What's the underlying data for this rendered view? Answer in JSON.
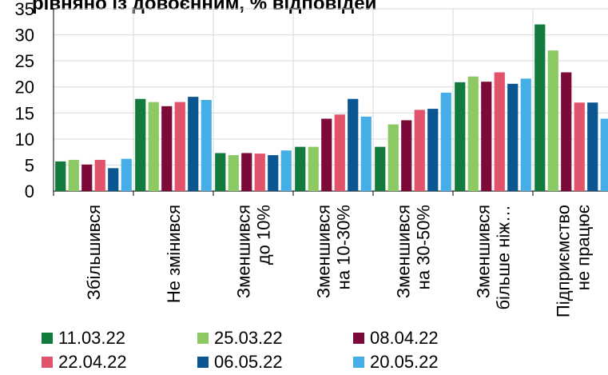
{
  "chart_data": {
    "type": "bar",
    "title": "рівняно із довоєнним, % відповідей",
    "ylim": [
      0,
      35
    ],
    "yticks": [
      0,
      5,
      10,
      15,
      20,
      25,
      30,
      35
    ],
    "grid": true,
    "legend_position": "bottom",
    "categories": [
      [
        "Збільшився"
      ],
      [
        "Не змінився"
      ],
      [
        "Зменшився",
        "до 10%"
      ],
      [
        "Зменшився",
        "на 10-30%"
      ],
      [
        "Зменшився",
        "на 30-50%"
      ],
      [
        "Зменшився",
        "більше ніж…"
      ],
      [
        "Підприємство",
        "не працює"
      ]
    ],
    "series": [
      {
        "name": "11.03.22",
        "color": "#127a3c",
        "values": [
          5.7,
          17.7,
          7.3,
          8.5,
          8.5,
          20.9,
          32.0
        ]
      },
      {
        "name": "25.03.22",
        "color": "#8cc963",
        "values": [
          6.0,
          17.1,
          6.9,
          8.5,
          12.8,
          22.0,
          27.0
        ]
      },
      {
        "name": "08.04.22",
        "color": "#7c0a38",
        "values": [
          5.1,
          16.3,
          7.3,
          13.9,
          13.6,
          21.0,
          22.8
        ]
      },
      {
        "name": "22.04.22",
        "color": "#e0536a",
        "values": [
          6.0,
          17.1,
          7.2,
          14.7,
          15.6,
          22.8,
          17.0
        ]
      },
      {
        "name": "06.05.22",
        "color": "#0b5690",
        "values": [
          4.4,
          18.1,
          6.9,
          17.7,
          15.8,
          20.6,
          17.0
        ]
      },
      {
        "name": "20.05.22",
        "color": "#46aee6",
        "values": [
          6.2,
          17.5,
          7.8,
          14.3,
          18.9,
          21.6,
          13.9
        ]
      }
    ]
  }
}
